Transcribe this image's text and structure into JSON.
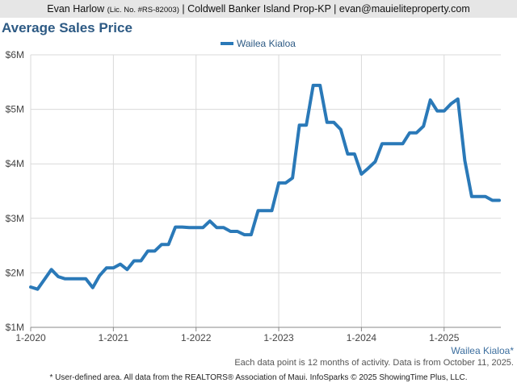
{
  "header": {
    "agent_name": "Evan Harlow",
    "license": "(Lic. No. #RS-82003)",
    "brokerage_contact": "| Coldwell Banker Island Prop-KP | evan@mauieliteproperty.com"
  },
  "chart_data": {
    "type": "line",
    "title": "Average Sales Price",
    "xlabel": "",
    "ylabel": "",
    "ylim": [
      1000000,
      6000000
    ],
    "y_ticks": [
      1000000,
      2000000,
      3000000,
      4000000,
      5000000,
      6000000
    ],
    "y_tick_labels": [
      "$1M",
      "$2M",
      "$3M",
      "$4M",
      "$5M",
      "$6M"
    ],
    "x_ticks": [
      "2020-01",
      "2021-01",
      "2022-01",
      "2023-01",
      "2024-01",
      "2025-01"
    ],
    "x_tick_labels": [
      "1-2020",
      "1-2021",
      "1-2022",
      "1-2023",
      "1-2024",
      "1-2025"
    ],
    "x_range": [
      "2020-01",
      "2025-09"
    ],
    "grid": true,
    "legend": "top-center",
    "color": "#2a79b8",
    "series": [
      {
        "name": "Wailea Kialoa",
        "x": [
          "2020-01",
          "2020-02",
          "2020-03",
          "2020-04",
          "2020-05",
          "2020-06",
          "2020-07",
          "2020-08",
          "2020-09",
          "2020-10",
          "2020-11",
          "2020-12",
          "2021-01",
          "2021-02",
          "2021-03",
          "2021-04",
          "2021-05",
          "2021-06",
          "2021-07",
          "2021-08",
          "2021-09",
          "2021-10",
          "2021-11",
          "2021-12",
          "2022-01",
          "2022-02",
          "2022-03",
          "2022-04",
          "2022-05",
          "2022-06",
          "2022-07",
          "2022-08",
          "2022-09",
          "2022-10",
          "2022-11",
          "2022-12",
          "2023-01",
          "2023-02",
          "2023-03",
          "2023-04",
          "2023-05",
          "2023-06",
          "2023-07",
          "2023-08",
          "2023-09",
          "2023-10",
          "2023-11",
          "2023-12",
          "2024-01",
          "2024-02",
          "2024-03",
          "2024-04",
          "2024-05",
          "2024-06",
          "2024-07",
          "2024-08",
          "2024-09",
          "2024-10",
          "2024-11",
          "2024-12",
          "2025-01",
          "2025-02",
          "2025-03",
          "2025-04",
          "2025-05",
          "2025-06",
          "2025-07",
          "2025-08",
          "2025-09"
        ],
        "values": [
          1740000,
          1700000,
          1880000,
          2060000,
          1930000,
          1890000,
          1890000,
          1890000,
          1890000,
          1730000,
          1950000,
          2090000,
          2090000,
          2160000,
          2060000,
          2220000,
          2220000,
          2400000,
          2400000,
          2520000,
          2520000,
          2840000,
          2840000,
          2830000,
          2830000,
          2830000,
          2950000,
          2830000,
          2830000,
          2760000,
          2760000,
          2700000,
          2700000,
          3140000,
          3140000,
          3140000,
          3650000,
          3650000,
          3740000,
          4710000,
          4710000,
          5440000,
          5440000,
          4760000,
          4760000,
          4630000,
          4180000,
          4180000,
          3810000,
          3920000,
          4040000,
          4370000,
          4370000,
          4370000,
          4370000,
          4570000,
          4570000,
          4690000,
          5170000,
          4970000,
          4970000,
          5100000,
          5190000,
          4060000,
          3400000,
          3400000,
          3400000,
          3330000,
          3330000
        ]
      }
    ]
  },
  "area_label": "Wailea Kialoa*",
  "footnote": "Each data point is 12 months of activity. Data is from October 11, 2025.",
  "source": "* User-defined area. All data from the REALTORS® Association of Maui. InfoSparks © 2025 ShowingTime Plus, LLC."
}
